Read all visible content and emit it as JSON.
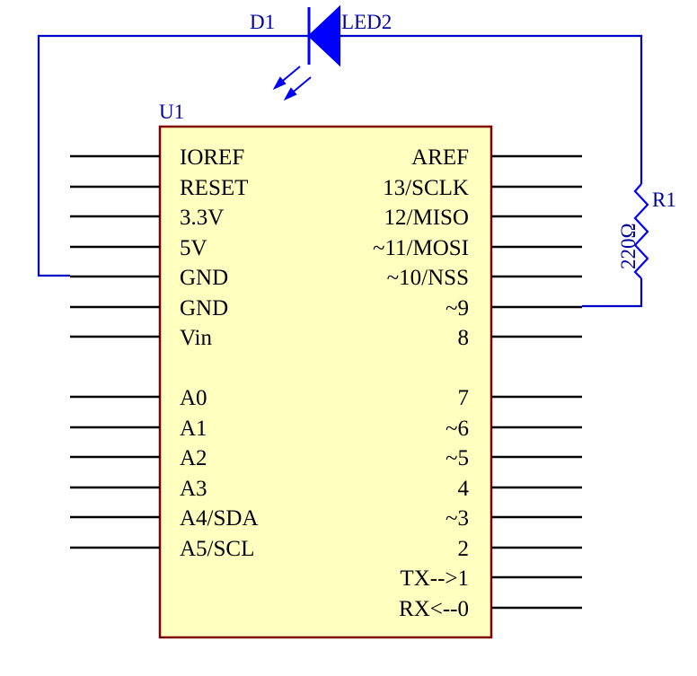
{
  "components": {
    "mcu": {
      "designator": "U1",
      "left_pins": [
        "IOREF",
        "RESET",
        "3.3V",
        "5V",
        "GND",
        "GND",
        "Vin",
        "",
        "A0",
        "A1",
        "A2",
        "A3",
        "A4/SDA",
        "A5/SCL",
        "",
        ""
      ],
      "right_pins": [
        "AREF",
        "13/SCLK",
        "12/MISO",
        "~11/MOSI",
        "~10/NSS",
        "~9",
        "8",
        "",
        "7",
        "~6",
        "~5",
        "4",
        "~3",
        "2",
        "TX-->1",
        "RX<--0"
      ],
      "body_color": "#ffffc0",
      "border_color": "#800000"
    },
    "led": {
      "designator": "D1",
      "value": "LED2",
      "color": "#0000ff"
    },
    "resistor": {
      "designator": "R1",
      "value": "220Ω",
      "color": "#0000ff"
    }
  },
  "colors": {
    "wire": "#0000c8",
    "label": "#0000a0",
    "pin": "#000000"
  }
}
